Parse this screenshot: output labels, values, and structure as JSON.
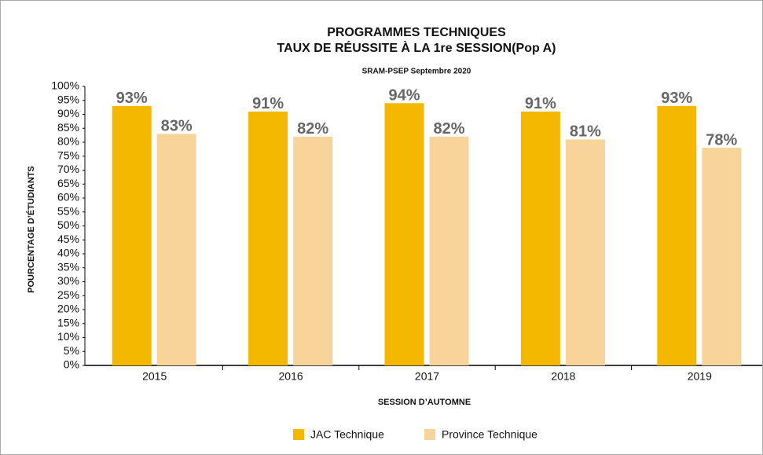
{
  "chart_data": {
    "type": "bar",
    "title": [
      "PROGRAMMES TECHNIQUES",
      "TAUX DE RÉUSSITE À LA 1re SESSION(Pop A)"
    ],
    "subtitle": "SRAM-PSEP Septembre 2020",
    "x_label": "SESSION D’AUTOMNE",
    "y_label": "POURCENTAGE D’ÉTUDIANTS",
    "categories": [
      "2015",
      "2016",
      "2017",
      "2018",
      "2019"
    ],
    "series": [
      {
        "name": "JAC Technique",
        "color": "#f5b800",
        "values": [
          93,
          91,
          94,
          91,
          93
        ],
        "value_labels": [
          "93%",
          "91%",
          "94%",
          "91%",
          "93%"
        ]
      },
      {
        "name": "Province Technique",
        "color": "#f8d49a",
        "values": [
          83,
          82,
          82,
          81,
          78
        ],
        "value_labels": [
          "83%",
          "82%",
          "82%",
          "81%",
          "78%"
        ]
      }
    ],
    "ylim": [
      0,
      100
    ],
    "yticks": [
      {
        "value": 0,
        "label": "0%"
      },
      {
        "value": 5,
        "label": "5%"
      },
      {
        "value": 10,
        "label": "10%"
      },
      {
        "value": 15,
        "label": "15%"
      },
      {
        "value": 20,
        "label": "20%"
      },
      {
        "value": 25,
        "label": "25%"
      },
      {
        "value": 30,
        "label": "30%"
      },
      {
        "value": 35,
        "label": "35%"
      },
      {
        "value": 40,
        "label": "40%"
      },
      {
        "value": 45,
        "label": "45%"
      },
      {
        "value": 50,
        "label": "50%"
      },
      {
        "value": 55,
        "label": "55%"
      },
      {
        "value": 60,
        "label": "60%"
      },
      {
        "value": 65,
        "label": "65%"
      },
      {
        "value": 70,
        "label": "70%"
      },
      {
        "value": 75,
        "label": "75%"
      },
      {
        "value": 80,
        "label": "80%"
      },
      {
        "value": 85,
        "label": "85%"
      },
      {
        "value": 90,
        "label": "90%"
      },
      {
        "value": 95,
        "label": "95%"
      },
      {
        "value": 100,
        "label": "100%"
      }
    ],
    "grid": false,
    "legend": "bottom"
  }
}
